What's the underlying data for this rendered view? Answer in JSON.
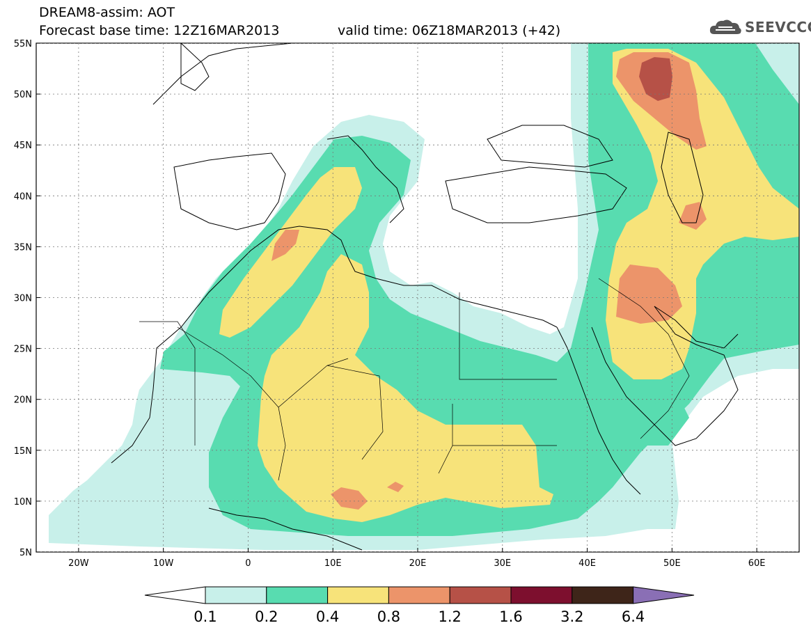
{
  "header": {
    "title": "DREAM8-assim: AOT",
    "base_time": "Forecast base time: 12Z16MAR2013",
    "valid_time": "valid time: 06Z18MAR2013 (+42)",
    "logo_text": "SEEVCCC",
    "logo_icon": "cloud-icon"
  },
  "map": {
    "lat_labels": [
      "55N",
      "50N",
      "45N",
      "40N",
      "35N",
      "30N",
      "25N",
      "20N",
      "15N",
      "10N",
      "5N"
    ],
    "lon_labels": [
      "20W",
      "10W",
      "0",
      "10E",
      "20E",
      "30E",
      "40E",
      "50E",
      "60E"
    ],
    "lat_range": [
      5,
      55
    ],
    "lon_range": [
      -25,
      65
    ],
    "grid": "dashed"
  },
  "colorbar": {
    "labels": [
      "0.1",
      "0.2",
      "0.4",
      "0.8",
      "1.2",
      "1.6",
      "3.2",
      "6.4"
    ],
    "colors": [
      "#ffffff",
      "#c8f0ea",
      "#58dcb0",
      "#f7e37a",
      "#ec946a",
      "#b65147",
      "#7d0f2e",
      "#3e2519",
      "#8a6fb5"
    ]
  },
  "colors": {
    "c1": "#c8f0ea",
    "c2": "#58dcb0",
    "c3": "#f7e37a",
    "c4": "#ec946a",
    "c5": "#b65147"
  }
}
